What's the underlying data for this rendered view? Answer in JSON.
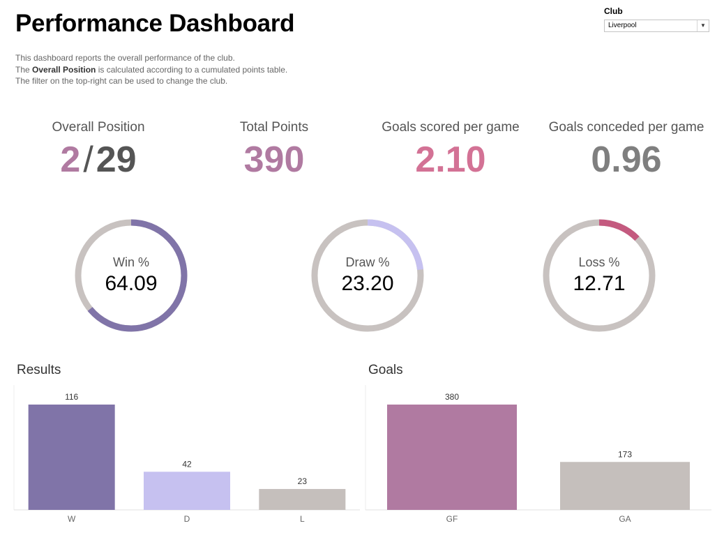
{
  "header": {
    "title": "Performance Dashboard",
    "description": {
      "line1": "This dashboard reports the overall performance of the club.",
      "line2_prefix": "The ",
      "line2_bold": "Overall Position",
      "line2_suffix": " is calculated according to a cumulated points table.",
      "line3": "The filter on the top-right can be used to change the club."
    }
  },
  "filter": {
    "label": "Club",
    "selected": "Liverpool",
    "arrow_icon": "dropdown-arrow-icon"
  },
  "kpis": {
    "position": {
      "label": "Overall Position",
      "value": "2",
      "separator": "/",
      "total": "29"
    },
    "points": {
      "label": "Total Points",
      "value": "390"
    },
    "scored": {
      "label": "Goals scored per game",
      "value": "2.10"
    },
    "conceded": {
      "label": "Goals conceded per game",
      "value": "0.96"
    }
  },
  "donuts": {
    "win": {
      "label": "Win %",
      "value": "64.09",
      "fraction": 0.6409
    },
    "draw": {
      "label": "Draw %",
      "value": "23.20",
      "fraction": 0.232
    },
    "loss": {
      "label": "Loss %",
      "value": "12.71",
      "fraction": 0.1271
    }
  },
  "colors": {
    "position": "#b07aa1",
    "position_total": "#555555",
    "points": "#b07aa1",
    "scored": "#d37295",
    "conceded": "#7f7f7f",
    "win": "#8074a8",
    "draw": "#c6c1f0",
    "loss": "#c45a7f",
    "ring_track": "#c8c2c0",
    "w_bar": "#8074a8",
    "d_bar": "#c6c1f0",
    "l_bar": "#c5bfbc",
    "gf_bar": "#b07aa1",
    "ga_bar": "#c5bfbc"
  },
  "sections": {
    "results": "Results",
    "goals": "Goals"
  },
  "chart_data": [
    {
      "type": "bar",
      "title": "Results",
      "categories": [
        "W",
        "D",
        "L"
      ],
      "values": [
        116,
        42,
        23
      ],
      "ylim": [
        0,
        116
      ],
      "grid": false
    },
    {
      "type": "bar",
      "title": "Goals",
      "categories": [
        "GF",
        "GA"
      ],
      "values": [
        380,
        173
      ],
      "ylim": [
        0,
        380
      ],
      "grid": false
    }
  ]
}
